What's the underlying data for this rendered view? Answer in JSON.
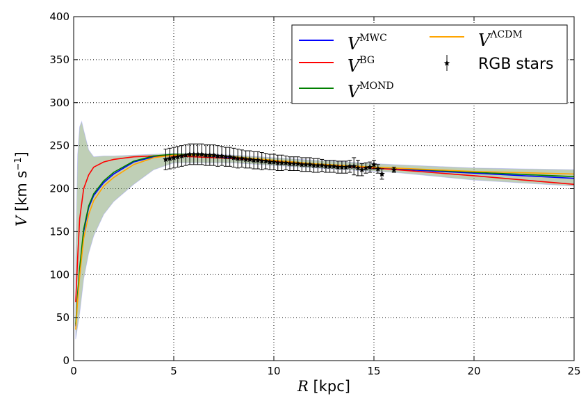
{
  "chart_data": {
    "type": "line",
    "xlabel": "R [kpc]",
    "xlabel_var": "R",
    "xlabel_unit": "[kpc]",
    "ylabel_var": "V",
    "ylabel_unit": "[km s",
    "ylabel_exp": "−1",
    "ylabel_close": "]",
    "xlim": [
      0,
      25
    ],
    "ylim": [
      0,
      400
    ],
    "xticks": [
      0,
      5,
      10,
      15,
      20,
      25
    ],
    "yticks": [
      0,
      50,
      100,
      150,
      200,
      250,
      300,
      350,
      400
    ],
    "grid": true,
    "legend": {
      "placement": "top-right",
      "entries": [
        {
          "base": "V",
          "sup": "MWC",
          "color": "#0000ff"
        },
        {
          "base": "V",
          "sup": "BG",
          "color": "#ff0000"
        },
        {
          "base": "V",
          "sup": "MOND",
          "color": "#008000"
        },
        {
          "base": "V",
          "sup": "ΛCDM",
          "color": "#ffa500"
        },
        {
          "label": "RGB stars",
          "color": "#000000"
        }
      ]
    },
    "x": [
      0.1,
      0.2,
      0.3,
      0.5,
      0.75,
      1,
      1.5,
      2,
      3,
      4,
      5,
      6,
      8,
      10,
      12,
      15,
      20,
      25
    ],
    "series": [
      {
        "name": "MWC",
        "color": "#0000ff",
        "values": [
          40,
          75,
          105,
          150,
          178,
          192,
          207,
          217,
          231,
          237,
          239,
          239,
          236,
          232,
          228,
          224,
          218,
          212
        ]
      },
      {
        "name": "BG",
        "color": "#ff0000",
        "values": [
          68,
          120,
          165,
          200,
          216,
          225,
          231,
          234,
          237,
          238,
          238,
          237,
          235,
          232,
          228,
          224,
          215,
          205
        ]
      },
      {
        "name": "MOND",
        "color": "#008000",
        "values": [
          42,
          78,
          108,
          153,
          180,
          194,
          209,
          219,
          232,
          238,
          240,
          240,
          237,
          233,
          229,
          225,
          219,
          214
        ]
      },
      {
        "name": "LCDM",
        "color": "#ffa500",
        "values": [
          36,
          70,
          98,
          142,
          170,
          186,
          203,
          213,
          228,
          236,
          239,
          239,
          237,
          233,
          229,
          225,
          220,
          217
        ]
      }
    ],
    "band": {
      "x": [
        0.1,
        0.2,
        0.3,
        0.4,
        0.5,
        0.75,
        1,
        1.5,
        2,
        3,
        4,
        5,
        8,
        12,
        16,
        20,
        25
      ],
      "upper": [
        120,
        240,
        272,
        278,
        268,
        245,
        237,
        238,
        238,
        239,
        240,
        241,
        239,
        233,
        228,
        224,
        222
      ],
      "lower": [
        25,
        40,
        55,
        75,
        95,
        125,
        145,
        170,
        185,
        205,
        222,
        230,
        230,
        224,
        219,
        210,
        203
      ]
    },
    "rgb_stars": {
      "R": [
        4.6,
        4.8,
        5.0,
        5.2,
        5.4,
        5.6,
        5.8,
        6.0,
        6.2,
        6.4,
        6.6,
        6.8,
        7.0,
        7.2,
        7.4,
        7.6,
        7.8,
        8.0,
        8.2,
        8.4,
        8.6,
        8.8,
        9.0,
        9.2,
        9.4,
        9.6,
        9.8,
        10.0,
        10.2,
        10.4,
        10.6,
        10.8,
        11.0,
        11.2,
        11.4,
        11.6,
        11.8,
        12.0,
        12.2,
        12.4,
        12.6,
        12.8,
        13.0,
        13.2,
        13.4,
        13.6,
        13.8,
        14.0,
        14.2,
        14.4,
        14.6,
        14.8,
        15.0,
        15.2,
        15.4,
        16.0
      ],
      "V": [
        234,
        235,
        236,
        237,
        238,
        239,
        240,
        240,
        240,
        240,
        239,
        239,
        239,
        238,
        238,
        237,
        237,
        236,
        235,
        235,
        234,
        234,
        233,
        233,
        232,
        232,
        231,
        231,
        230,
        230,
        230,
        229,
        229,
        229,
        228,
        228,
        228,
        227,
        227,
        227,
        226,
        226,
        226,
        225,
        225,
        225,
        226,
        226,
        224,
        222,
        224,
        225,
        228,
        223,
        217,
        222
      ],
      "err": [
        12,
        12,
        12,
        12,
        12,
        12,
        12,
        12,
        12,
        12,
        12,
        12,
        12,
        12,
        11,
        11,
        11,
        11,
        11,
        10,
        10,
        10,
        10,
        10,
        10,
        9,
        9,
        9,
        9,
        9,
        8,
        8,
        8,
        8,
        8,
        8,
        8,
        8,
        8,
        7,
        7,
        7,
        7,
        7,
        7,
        7,
        7,
        10,
        9,
        7,
        6,
        6,
        5,
        5,
        6,
        3
      ]
    }
  }
}
